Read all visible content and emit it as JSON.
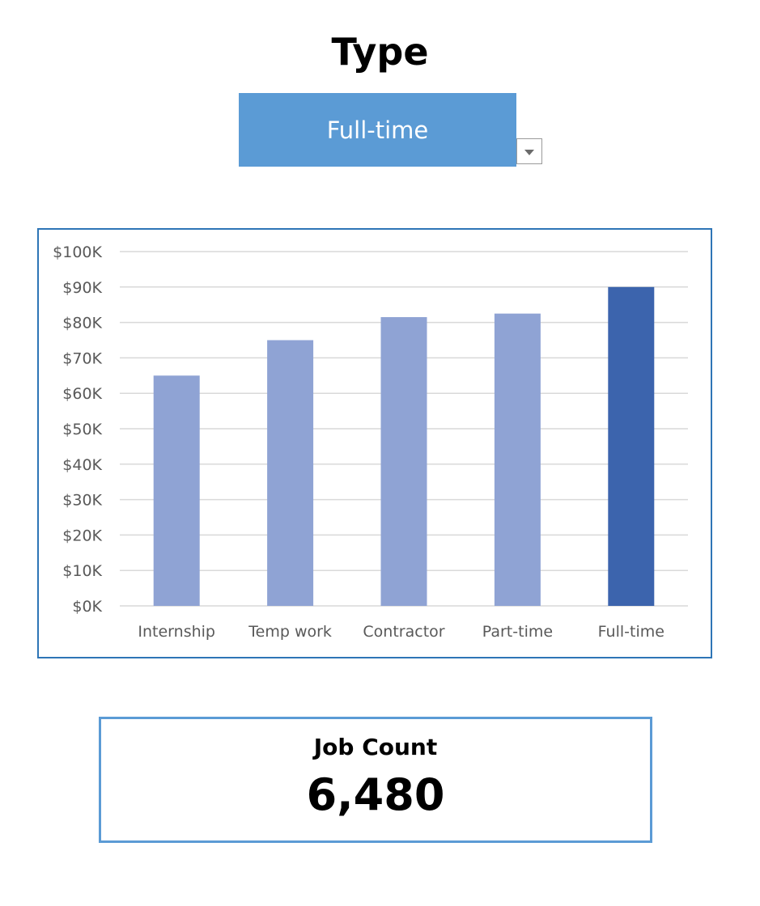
{
  "header": {
    "title": "Type"
  },
  "filter": {
    "selected": "Full-time"
  },
  "chart_data": {
    "type": "bar",
    "categories": [
      "Internship",
      "Temp work",
      "Contractor",
      "Part-time",
      "Full-time"
    ],
    "values": [
      65000,
      75000,
      81500,
      82500,
      90000
    ],
    "highlight": "Full-time",
    "ylim": [
      0,
      100000
    ],
    "yticks": [
      "$0K",
      "$10K",
      "$20K",
      "$30K",
      "$40K",
      "$50K",
      "$60K",
      "$70K",
      "$80K",
      "$90K",
      "$100K"
    ],
    "grid": true,
    "colors": {
      "bar": "#8fa3d4",
      "highlight": "#3c64ad",
      "grid": "#d9d9d9",
      "axis_text": "#595959"
    }
  },
  "kpi": {
    "label": "Job Count",
    "value": "6,480"
  }
}
